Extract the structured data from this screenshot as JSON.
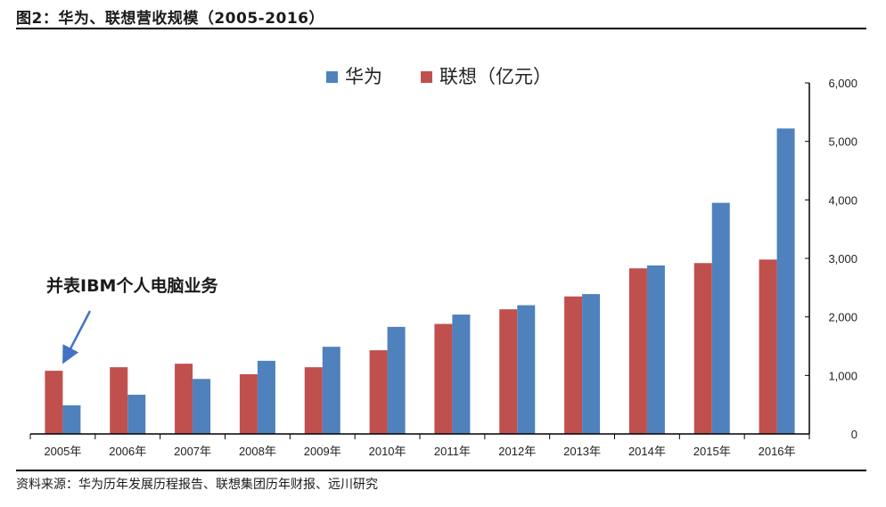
{
  "header": {
    "title": "图2：华为、联想营收规模（2005-2016）"
  },
  "footer": {
    "source": "资料来源：华为历年发展历程报告、联想集团历年财报、远川研究"
  },
  "colors": {
    "huawei": "#4f81bd",
    "lenovo": "#c0504d",
    "arrow": "#4472c4"
  },
  "chart_data": {
    "type": "bar",
    "categories": [
      "2005年",
      "2006年",
      "2007年",
      "2008年",
      "2009年",
      "2010年",
      "2011年",
      "2012年",
      "2013年",
      "2014年",
      "2015年",
      "2016年"
    ],
    "series": [
      {
        "name": "联想（亿元）",
        "color": "#c0504d",
        "values": [
          1080,
          1140,
          1200,
          1020,
          1140,
          1430,
          1880,
          2130,
          2350,
          2830,
          2920,
          2980
        ]
      },
      {
        "name": "华为",
        "color": "#4f81bd",
        "values": [
          490,
          670,
          940,
          1250,
          1490,
          1830,
          2040,
          2200,
          2390,
          2880,
          3950,
          5220
        ]
      }
    ],
    "legend_order": [
      "华为",
      "联想（亿元）"
    ],
    "legend_position": "top-center",
    "ylim": [
      0,
      6000
    ],
    "y_ticks": [
      "0",
      "1,000",
      "2,000",
      "3,000",
      "4,000",
      "5,000",
      "6,000"
    ],
    "y_axis_side": "right",
    "grid": false,
    "annotation": {
      "text": "并表IBM个人电脑业务",
      "target_category": "2005年"
    }
  }
}
